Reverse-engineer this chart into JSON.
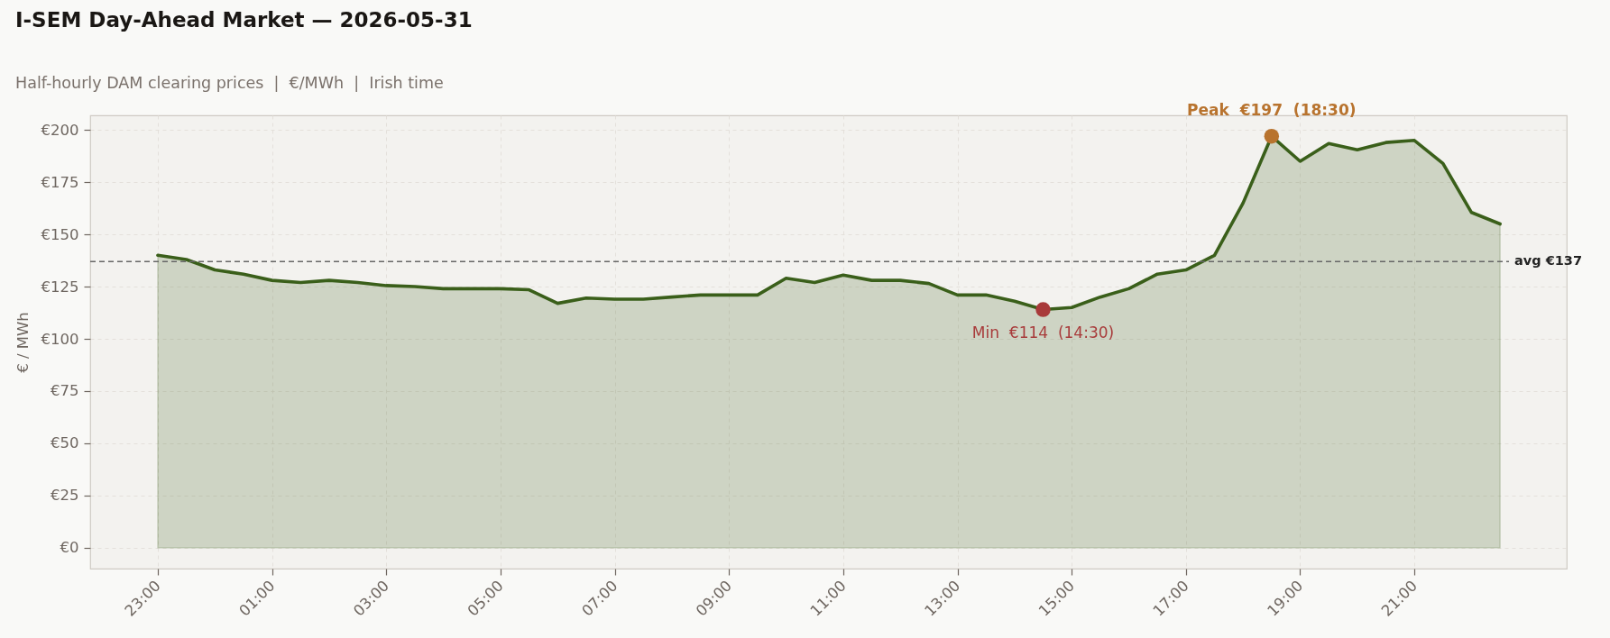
{
  "chart_data": {
    "type": "area",
    "title": "I-SEM Day-Ahead Market — 2026-05-31",
    "subtitle": "Half-hourly DAM clearing prices  |  €/MWh  |  Irish time",
    "ylabel": "€ / MWh",
    "x": [
      "2026-05-30T23:00",
      "2026-05-30T23:30",
      "2026-05-31T00:00",
      "2026-05-31T00:30",
      "2026-05-31T01:00",
      "2026-05-31T01:30",
      "2026-05-31T02:00",
      "2026-05-31T02:30",
      "2026-05-31T03:00",
      "2026-05-31T03:30",
      "2026-05-31T04:00",
      "2026-05-31T04:30",
      "2026-05-31T05:00",
      "2026-05-31T05:30",
      "2026-05-31T06:00",
      "2026-05-31T06:30",
      "2026-05-31T07:00",
      "2026-05-31T07:30",
      "2026-05-31T08:00",
      "2026-05-31T08:30",
      "2026-05-31T09:00",
      "2026-05-31T09:30",
      "2026-05-31T10:00",
      "2026-05-31T10:30",
      "2026-05-31T11:00",
      "2026-05-31T11:30",
      "2026-05-31T12:00",
      "2026-05-31T12:30",
      "2026-05-31T13:00",
      "2026-05-31T13:30",
      "2026-05-31T14:00",
      "2026-05-31T14:30",
      "2026-05-31T15:00",
      "2026-05-31T15:30",
      "2026-05-31T16:00",
      "2026-05-31T16:30",
      "2026-05-31T17:00",
      "2026-05-31T17:30",
      "2026-05-31T18:00",
      "2026-05-31T18:30",
      "2026-05-31T19:00",
      "2026-05-31T19:30",
      "2026-05-31T20:00",
      "2026-05-31T20:30",
      "2026-05-31T21:00",
      "2026-05-31T21:30",
      "2026-05-31T22:00",
      "2026-05-31T22:30"
    ],
    "series": [
      {
        "color": "#3a5f1a",
        "values": [
          140,
          138,
          133,
          131,
          128,
          127,
          128,
          127,
          125.5,
          125,
          124,
          124,
          124,
          123.5,
          117,
          119.5,
          119,
          119,
          120,
          121,
          121,
          121,
          129,
          127,
          130.5,
          128,
          128,
          126.5,
          121,
          121,
          118,
          114,
          115,
          120,
          124,
          131,
          133,
          140,
          165,
          197,
          185,
          193.5,
          190.5,
          194,
          195,
          184,
          160.5,
          155
        ]
      },
      {
        "type": "scatter",
        "marker": "circle",
        "color": "#b8732e",
        "x": [
          "2026-05-31T18:30"
        ],
        "values": [
          197
        ]
      },
      {
        "type": "scatter",
        "marker": "circle",
        "color": "#a83a3a",
        "x": [
          "2026-05-31T14:30"
        ],
        "values": [
          114
        ]
      }
    ],
    "xlim": [
      "2026-05-30T21:49",
      "2026-05-31T23:40"
    ],
    "xticks": [
      {
        "value": "2026-05-30T23:00",
        "label": "23:00"
      },
      {
        "value": "2026-05-31T01:00",
        "label": "01:00"
      },
      {
        "value": "2026-05-31T03:00",
        "label": "03:00"
      },
      {
        "value": "2026-05-31T05:00",
        "label": "05:00"
      },
      {
        "value": "2026-05-31T07:00",
        "label": "07:00"
      },
      {
        "value": "2026-05-31T09:00",
        "label": "09:00"
      },
      {
        "value": "2026-05-31T11:00",
        "label": "11:00"
      },
      {
        "value": "2026-05-31T13:00",
        "label": "13:00"
      },
      {
        "value": "2026-05-31T15:00",
        "label": "15:00"
      },
      {
        "value": "2026-05-31T17:00",
        "label": "17:00"
      },
      {
        "value": "2026-05-31T19:00",
        "label": "19:00"
      },
      {
        "value": "2026-05-31T21:00",
        "label": "21:00"
      }
    ],
    "ylim": [
      -10,
      207
    ],
    "yticks": [
      {
        "value": 0,
        "label": "€0"
      },
      {
        "value": 25,
        "label": "€25"
      },
      {
        "value": 50,
        "label": "€50"
      },
      {
        "value": 75,
        "label": "€75"
      },
      {
        "value": 100,
        "label": "€100"
      },
      {
        "value": 125,
        "label": "€125"
      },
      {
        "value": 150,
        "label": "€150"
      },
      {
        "value": 175,
        "label": "€175"
      },
      {
        "value": 200,
        "label": "€200"
      }
    ],
    "ref_lines": [
      {
        "axis": "y",
        "value": 137,
        "label": "avg €137",
        "color": "#666666",
        "line_style": "dashed"
      }
    ],
    "annotations": [
      {
        "text": "Peak  €197  (18:30)",
        "x": "2026-05-31T18:30",
        "y": 197
      },
      {
        "text": "Min  €114  (14:30)",
        "x": "2026-05-31T14:30",
        "y": 114
      }
    ],
    "grid": true
  }
}
